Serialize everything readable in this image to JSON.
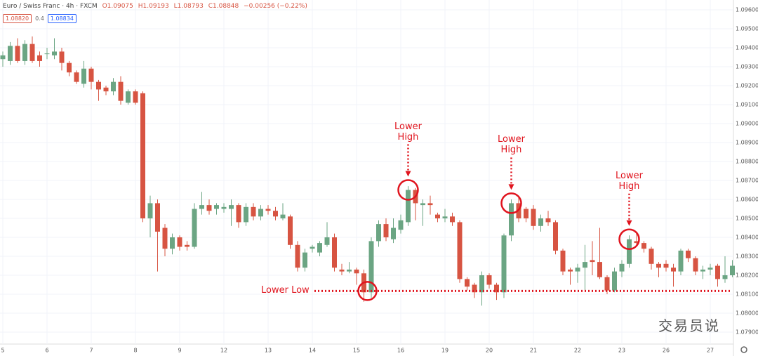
{
  "chart_data": {
    "type": "candlestick",
    "title": "Euro / Swiss Franc · 4h · FXCM",
    "header": {
      "open": "O1.09075",
      "high": "H1.09193",
      "low": "L1.08793",
      "close": "C1.08848",
      "change": "−0.00256 (−0.22%)",
      "sell": "1.08820",
      "spread": "0.4",
      "buy": "1.08834"
    },
    "watermark": "交易员说",
    "colors": {
      "up": "#6ba583",
      "down": "#d75442",
      "annotation": "#e0141e"
    },
    "grid": true,
    "categories": [
      "5",
      null,
      null,
      null,
      null,
      null,
      "6",
      null,
      null,
      null,
      null,
      null,
      "7",
      null,
      null,
      null,
      null,
      null,
      "8",
      null,
      null,
      null,
      null,
      null,
      "9",
      null,
      null,
      null,
      null,
      null,
      "12",
      null,
      null,
      null,
      null,
      null,
      "13",
      null,
      null,
      null,
      null,
      null,
      "14",
      null,
      null,
      null,
      null,
      null,
      "15",
      null,
      null,
      null,
      null,
      null,
      "16",
      null,
      null,
      null,
      null,
      null,
      "19",
      null,
      null,
      null,
      null,
      null,
      "20",
      null,
      null,
      null,
      null,
      null,
      "21",
      null,
      null,
      null,
      null,
      null,
      "22",
      null,
      null,
      null,
      null,
      null,
      "23",
      null,
      null,
      null,
      null,
      null,
      "26",
      null,
      null,
      null,
      null,
      null,
      "27",
      null,
      null,
      null
    ],
    "open": [
      1.0934,
      1.0933,
      1.0941,
      1.0933,
      1.0942,
      1.0936,
      1.0937,
      1.0936,
      1.0938,
      1.0932,
      1.0927,
      1.0921,
      1.0929,
      1.0922,
      1.0919,
      1.0917,
      1.0922,
      1.0911,
      1.0917,
      1.0916,
      1.085,
      1.0858,
      1.0845,
      1.0834,
      1.084,
      1.0836,
      1.0835,
      1.0855,
      1.0857,
      1.0855,
      1.0855,
      1.0855,
      1.0857,
      1.0848,
      1.0856,
      1.0851,
      1.0855,
      1.0854,
      1.085,
      1.0851,
      1.0836,
      1.0824,
      1.0834,
      1.0832,
      1.0836,
      1.084,
      1.0823,
      1.0822,
      1.0823,
      1.0821,
      1.0811,
      1.0838,
      1.0847,
      1.0839,
      1.0844,
      1.0848,
      1.0865,
      1.0857,
      1.0858,
      1.0852,
      1.085,
      1.0851,
      1.0848,
      1.0818,
      1.0815,
      1.0811,
      1.082,
      1.0815,
      1.0811,
      1.0841,
      1.0858,
      1.0855,
      1.0855,
      1.0846,
      1.085,
      1.0848,
      1.0833,
      1.0823,
      1.0822,
      1.0824,
      1.0828,
      1.0827,
      1.0819,
      1.0812,
      1.0822,
      1.0826,
      1.0838,
      1.0837,
      1.0834,
      1.0826,
      1.0826,
      1.0824,
      1.0822,
      1.0833,
      1.0829,
      1.0822,
      1.0823,
      1.0825,
      1.0818,
      1.082
    ],
    "high": [
      1.0938,
      1.0943,
      1.0945,
      1.0944,
      1.0946,
      1.0938,
      1.094,
      1.0945,
      1.094,
      1.0933,
      1.0928,
      1.0933,
      1.093,
      1.0923,
      1.092,
      1.0924,
      1.0925,
      1.0918,
      1.0918,
      1.0917,
      1.0862,
      1.086,
      1.0847,
      1.0842,
      1.0841,
      1.0838,
      1.0858,
      1.0864,
      1.086,
      1.0858,
      1.0858,
      1.086,
      1.0858,
      1.0858,
      1.0858,
      1.0857,
      1.0857,
      1.0856,
      1.0858,
      1.0852,
      1.0838,
      1.0834,
      1.0836,
      1.0838,
      1.0848,
      1.0842,
      1.0826,
      1.0827,
      1.0824,
      1.0823,
      1.084,
      1.0849,
      1.085,
      1.085,
      1.0852,
      1.0867,
      1.0866,
      1.086,
      1.0862,
      1.0853,
      1.0855,
      1.0853,
      1.0849,
      1.0819,
      1.0816,
      1.0822,
      1.0821,
      1.0816,
      1.0842,
      1.086,
      1.0861,
      1.0856,
      1.0857,
      1.0852,
      1.0854,
      1.0849,
      1.0834,
      1.0824,
      1.0826,
      1.0836,
      1.0838,
      1.0845,
      1.082,
      1.0824,
      1.0828,
      1.0841,
      1.0842,
      1.0838,
      1.0835,
      1.0827,
      1.0828,
      1.0826,
      1.0834,
      1.0834,
      1.083,
      1.0825,
      1.0826,
      1.0826,
      1.083,
      1.0828
    ],
    "low": [
      1.093,
      1.0931,
      1.0932,
      1.0931,
      1.0932,
      1.093,
      1.0934,
      1.0934,
      1.0928,
      1.0925,
      1.0921,
      1.0919,
      1.0918,
      1.0912,
      1.0915,
      1.0915,
      1.091,
      1.091,
      1.091,
      1.0848,
      1.084,
      1.0822,
      1.083,
      1.0831,
      1.0833,
      1.0833,
      1.0834,
      1.0852,
      1.0852,
      1.0852,
      1.0853,
      1.0846,
      1.0845,
      1.0846,
      1.0849,
      1.0849,
      1.0852,
      1.0849,
      1.0849,
      1.0834,
      1.0822,
      1.0822,
      1.0832,
      1.083,
      1.0835,
      1.0822,
      1.082,
      1.0821,
      1.0815,
      1.0806,
      1.0808,
      1.0835,
      1.0838,
      1.0837,
      1.0842,
      1.0846,
      1.0849,
      1.0846,
      1.0852,
      1.0848,
      1.0848,
      1.0846,
      1.0816,
      1.0812,
      1.0808,
      1.0804,
      1.0813,
      1.0807,
      1.0808,
      1.0838,
      1.0848,
      1.0848,
      1.0844,
      1.0843,
      1.0846,
      1.0831,
      1.082,
      1.0815,
      1.0816,
      1.0812,
      1.082,
      1.0818,
      1.081,
      1.0811,
      1.0819,
      1.0824,
      1.0835,
      1.0832,
      1.0823,
      1.0819,
      1.0822,
      1.0814,
      1.082,
      1.0827,
      1.082,
      1.0818,
      1.082,
      1.0814,
      1.0816,
      1.0819
    ],
    "close": [
      1.0936,
      1.0941,
      1.0933,
      1.0942,
      1.0933,
      1.0933,
      1.0937,
      1.0938,
      1.0932,
      1.0927,
      1.0922,
      1.0929,
      1.0922,
      1.0918,
      1.0917,
      1.0922,
      1.0912,
      1.0917,
      1.0911,
      1.085,
      1.0858,
      1.0843,
      1.0834,
      1.084,
      1.0835,
      1.0835,
      1.0855,
      1.0857,
      1.0854,
      1.0857,
      1.0856,
      1.0857,
      1.0848,
      1.0856,
      1.0851,
      1.0855,
      1.0854,
      1.0851,
      1.0852,
      1.0836,
      1.0824,
      1.0832,
      1.0835,
      1.0837,
      1.084,
      1.0824,
      1.0822,
      1.0823,
      1.0821,
      1.0811,
      1.0838,
      1.0847,
      1.084,
      1.0845,
      1.0849,
      1.0865,
      1.0858,
      1.0858,
      1.0857,
      1.085,
      1.0851,
      1.0848,
      1.0818,
      1.0814,
      1.0811,
      1.082,
      1.0815,
      1.0811,
      1.0841,
      1.0858,
      1.085,
      1.085,
      1.0846,
      1.085,
      1.0848,
      1.0833,
      1.0822,
      1.0822,
      1.0824,
      1.0827,
      1.0827,
      1.0819,
      1.0812,
      1.0822,
      1.0826,
      1.0839,
      1.0837,
      1.0834,
      1.0826,
      1.0824,
      1.0824,
      1.0822,
      1.0833,
      1.0829,
      1.0822,
      1.0823,
      1.0824,
      1.0818,
      1.082,
      1.0825
    ],
    "ylim": [
      1.07837,
      1.09652
    ],
    "yticks": [
      {
        "value": 1.096,
        "label": "1.09600"
      },
      {
        "value": 1.095,
        "label": "1.09500"
      },
      {
        "value": 1.094,
        "label": "1.09400"
      },
      {
        "value": 1.093,
        "label": "1.09300"
      },
      {
        "value": 1.092,
        "label": "1.09200"
      },
      {
        "value": 1.091,
        "label": "1.09100"
      },
      {
        "value": 1.09,
        "label": "1.09000"
      },
      {
        "value": 1.089,
        "label": "1.08900"
      },
      {
        "value": 1.088,
        "label": "1.08800"
      },
      {
        "value": 1.087,
        "label": "1.08700"
      },
      {
        "value": 1.086,
        "label": "1.08600"
      },
      {
        "value": 1.085,
        "label": "1.08500"
      },
      {
        "value": 1.084,
        "label": "1.08400"
      },
      {
        "value": 1.083,
        "label": "1.08300"
      },
      {
        "value": 1.082,
        "label": "1.08200"
      },
      {
        "value": 1.081,
        "label": "1.08100"
      },
      {
        "value": 1.08,
        "label": "1.08000"
      },
      {
        "value": 1.079,
        "label": "1.07900"
      }
    ],
    "annotations": [
      {
        "text": "Lower Low",
        "value": 1.08117
      },
      {
        "text": "Lower High",
        "value": 1.0865
      },
      {
        "text": "Lower High",
        "value": 1.0858
      },
      {
        "text": "Lower High",
        "value": 1.0839
      }
    ]
  }
}
